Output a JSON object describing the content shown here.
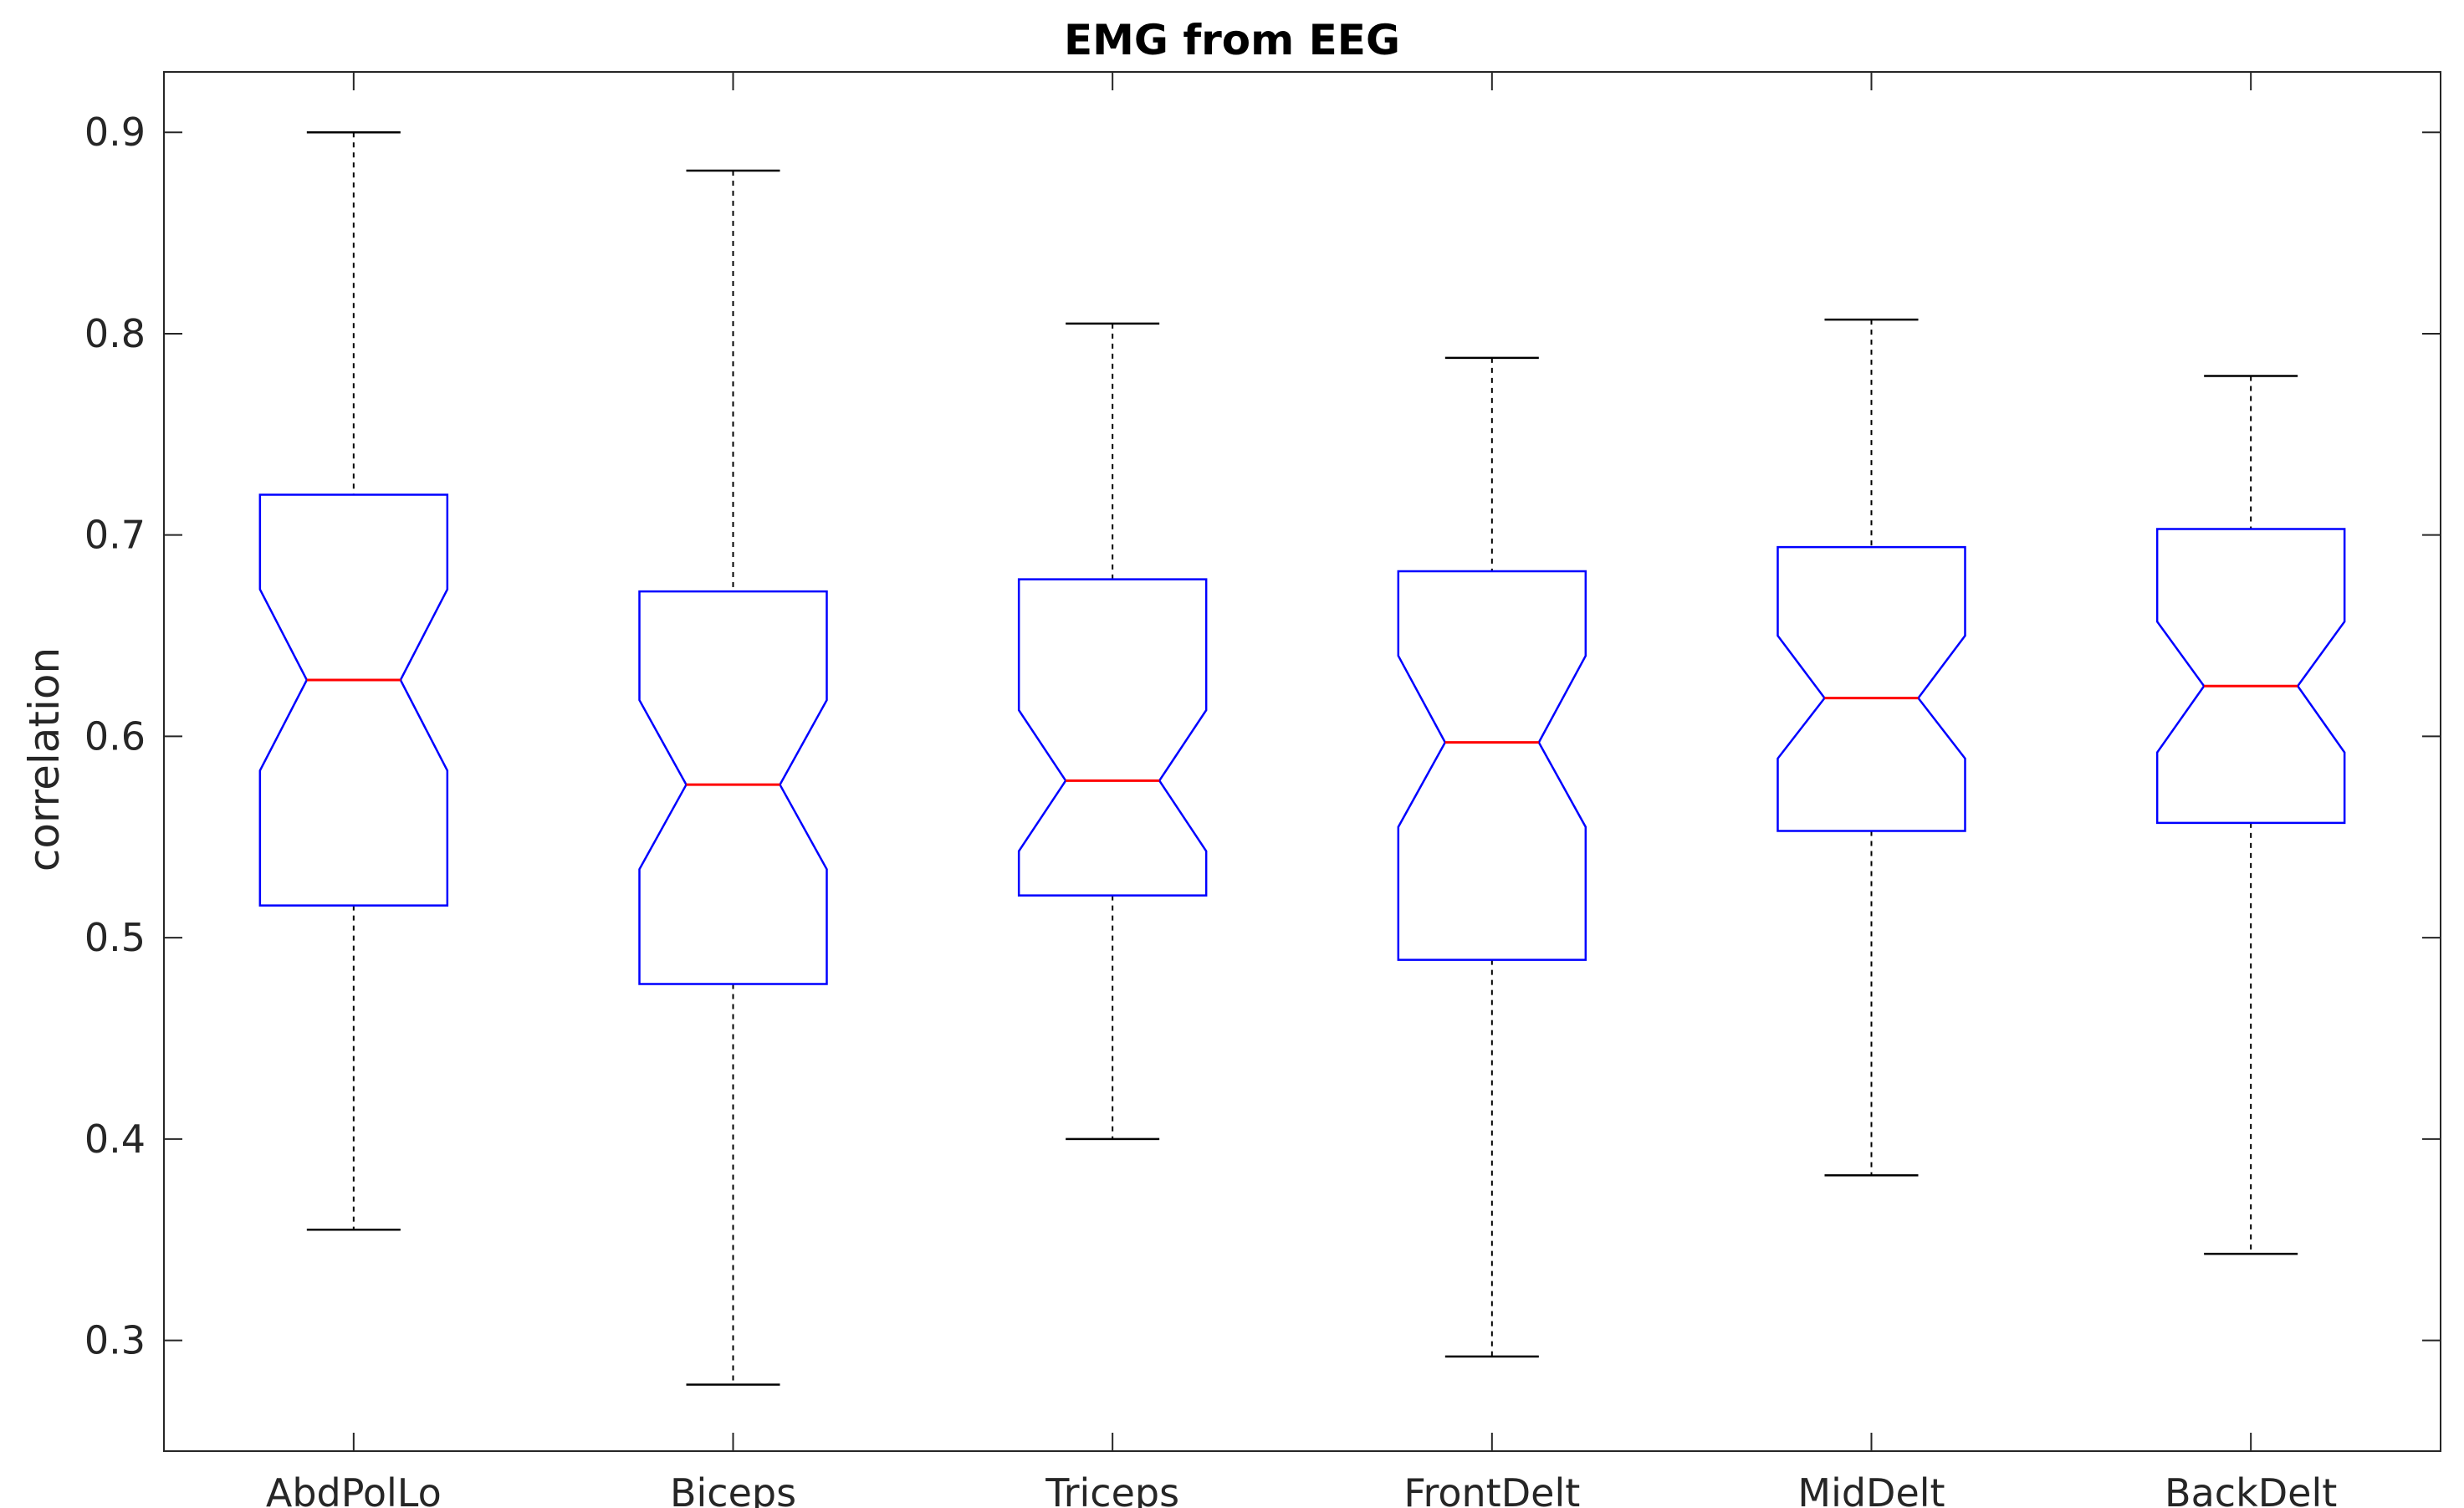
{
  "chart_data": {
    "type": "boxplot",
    "title": "EMG from EEG",
    "xlabel": "",
    "ylabel": "correlation",
    "ylim": [
      0.245,
      0.93
    ],
    "yticks": [
      0.3,
      0.4,
      0.5,
      0.6,
      0.7,
      0.8,
      0.9
    ],
    "ytick_labels": [
      "0.3",
      "0.4",
      "0.5",
      "0.6",
      "0.7",
      "0.8",
      "0.9"
    ],
    "notched": true,
    "grid": false,
    "colors": {
      "box": "#0000ff",
      "median": "#ff0000",
      "whisker": "#000000",
      "axes": "#262626"
    },
    "categories": [
      "AbdPolLo",
      "Biceps",
      "Triceps",
      "FrontDelt",
      "MidDelt",
      "BackDelt"
    ],
    "boxes": [
      {
        "name": "AbdPolLo",
        "whisker_low": 0.355,
        "q1": 0.516,
        "median": 0.628,
        "q3": 0.72,
        "whisker_high": 0.9,
        "notch_low": 0.583,
        "notch_high": 0.673
      },
      {
        "name": "Biceps",
        "whisker_low": 0.278,
        "q1": 0.477,
        "median": 0.576,
        "q3": 0.672,
        "whisker_high": 0.881,
        "notch_low": 0.534,
        "notch_high": 0.618
      },
      {
        "name": "Triceps",
        "whisker_low": 0.4,
        "q1": 0.521,
        "median": 0.578,
        "q3": 0.678,
        "whisker_high": 0.805,
        "notch_low": 0.543,
        "notch_high": 0.613
      },
      {
        "name": "FrontDelt",
        "whisker_low": 0.292,
        "q1": 0.489,
        "median": 0.597,
        "q3": 0.682,
        "whisker_high": 0.788,
        "notch_low": 0.555,
        "notch_high": 0.64
      },
      {
        "name": "MidDelt",
        "whisker_low": 0.382,
        "q1": 0.553,
        "median": 0.619,
        "q3": 0.694,
        "whisker_high": 0.807,
        "notch_low": 0.589,
        "notch_high": 0.65
      },
      {
        "name": "BackDelt",
        "whisker_low": 0.343,
        "q1": 0.557,
        "median": 0.625,
        "q3": 0.703,
        "whisker_high": 0.779,
        "notch_low": 0.592,
        "notch_high": 0.657
      }
    ]
  }
}
